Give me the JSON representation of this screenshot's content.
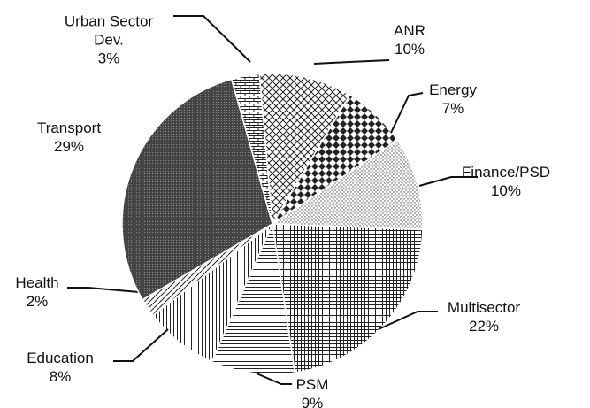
{
  "chart_data": {
    "type": "pie",
    "categories": [
      "ANR",
      "Energy",
      "Finance/PSD",
      "Multisector",
      "PSM",
      "Education",
      "Health",
      "Transport",
      "Urban Sector Dev."
    ],
    "values": [
      10,
      7,
      10,
      22,
      9,
      8,
      2,
      29,
      3
    ],
    "value_labels": [
      "10%",
      "7%",
      "10%",
      "22%",
      "9%",
      "8%",
      "2%",
      "29%",
      "3%"
    ]
  }
}
